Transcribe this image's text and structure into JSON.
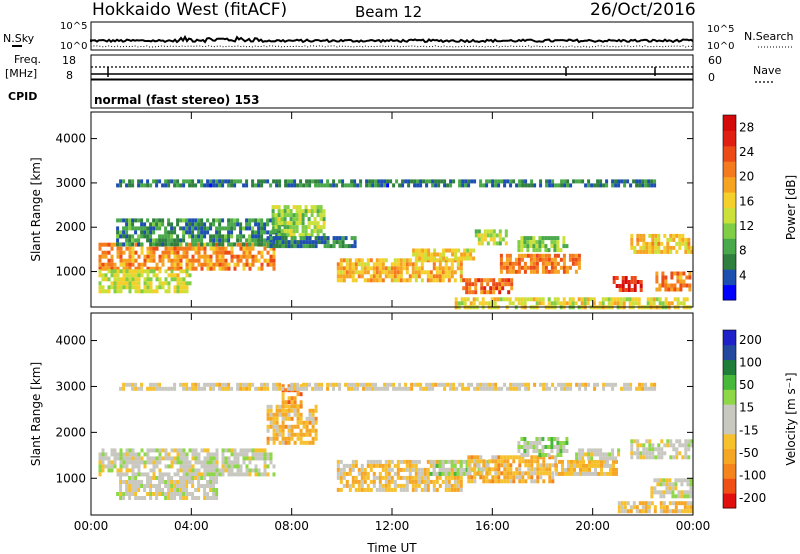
{
  "header": {
    "station": "Hokkaido West (fitACF)",
    "beam": "Beam 12",
    "date": "26/Oct/2016"
  },
  "status_panels": {
    "nsky_label": "N.Sky",
    "nsearch_label": "N.Search",
    "noise_ticks": [
      "10^5",
      "10^0"
    ],
    "freq_label_line1": "Freq.",
    "freq_label_line2": "[MHz]",
    "freq_ticks": [
      "18",
      "8"
    ],
    "nave_label": "Nave",
    "nave_ticks": [
      "60",
      "0"
    ],
    "cpid_label": "CPID",
    "cpid_text": "normal (fast stereo) 153"
  },
  "chart_data": [
    {
      "type": "heatmap",
      "name": "power",
      "ylabel": "Slant Range [km]",
      "ylim": [
        200,
        4600
      ],
      "yticks": [
        1000,
        2000,
        3000,
        4000
      ],
      "xlim": [
        0,
        24
      ],
      "xticks": [
        "00:00",
        "04:00",
        "08:00",
        "12:00",
        "16:00",
        "20:00",
        "00:00"
      ],
      "colorbar": {
        "label": "Power [dB]",
        "ticks": [
          "4",
          "8",
          "12",
          "16",
          "20",
          "24",
          "28"
        ],
        "range": [
          0,
          30
        ],
        "colors": [
          "#0000ff",
          "#1d4fb0",
          "#2f7f3f",
          "#48a84a",
          "#7fce45",
          "#cce03a",
          "#f5d02a",
          "#f6a321",
          "#f47a1d",
          "#ec4b17",
          "#e01e12",
          "#d40a0a"
        ]
      },
      "regions": [
        {
          "t0": 0.3,
          "t1": 7.3,
          "r0": 1050,
          "r1": 1650,
          "v": 20
        },
        {
          "t0": 0.3,
          "t1": 4.0,
          "r0": 550,
          "r1": 1050,
          "v": 14
        },
        {
          "t0": 1.0,
          "t1": 7.6,
          "r0": 1650,
          "r1": 2200,
          "v": 7
        },
        {
          "t0": 7.2,
          "t1": 9.3,
          "r0": 1800,
          "r1": 2500,
          "v": 12
        },
        {
          "t0": 7.0,
          "t1": 10.5,
          "r0": 1600,
          "r1": 1800,
          "v": 6
        },
        {
          "t0": 9.8,
          "t1": 14.8,
          "r0": 780,
          "r1": 1300,
          "v": 18
        },
        {
          "t0": 12.8,
          "t1": 15.3,
          "r0": 1300,
          "r1": 1520,
          "v": 16
        },
        {
          "t0": 14.8,
          "t1": 16.8,
          "r0": 550,
          "r1": 850,
          "v": 22
        },
        {
          "t0": 15.3,
          "t1": 16.5,
          "r0": 1650,
          "r1": 1950,
          "v": 13
        },
        {
          "t0": 16.3,
          "t1": 19.5,
          "r0": 950,
          "r1": 1400,
          "v": 21
        },
        {
          "t0": 17.0,
          "t1": 19.0,
          "r0": 1500,
          "r1": 1800,
          "v": 12
        },
        {
          "t0": 20.8,
          "t1": 21.9,
          "r0": 600,
          "r1": 900,
          "v": 26
        },
        {
          "t0": 21.5,
          "t1": 23.9,
          "r0": 1450,
          "r1": 1850,
          "v": 17
        },
        {
          "t0": 22.5,
          "t1": 23.9,
          "r0": 550,
          "r1": 1000,
          "v": 21
        },
        {
          "t0": 14.5,
          "t1": 23.9,
          "r0": 230,
          "r1": 420,
          "v": 15
        },
        {
          "t0": 1.0,
          "t1": 22.5,
          "r0": 2950,
          "r1": 3080,
          "v": 6
        }
      ]
    },
    {
      "type": "heatmap",
      "name": "velocity",
      "ylabel": "Slant Range [km]",
      "ylim": [
        200,
        4600
      ],
      "yticks": [
        1000,
        2000,
        3000,
        4000
      ],
      "xlim": [
        0,
        24
      ],
      "xticks": [
        "00:00",
        "04:00",
        "08:00",
        "12:00",
        "16:00",
        "20:00",
        "00:00"
      ],
      "xlabel": "Time UT",
      "colorbar": {
        "label": "Velocity [m s⁻¹]",
        "ticks": [
          "200",
          "100",
          "50",
          "15",
          "-15",
          "-50",
          "-100",
          "-200"
        ],
        "range": [
          -250,
          250
        ],
        "colors": [
          "#e20f0f",
          "#f04f16",
          "#f5841d",
          "#f6a625",
          "#f7c02d",
          "#c8c8c0",
          "#c8c8c0",
          "#8ed848",
          "#46b83a",
          "#1f7f3a",
          "#23499e",
          "#2020c8"
        ]
      },
      "regions": [
        {
          "t0": 0.3,
          "t1": 7.3,
          "r0": 1050,
          "r1": 1650,
          "v": 0
        },
        {
          "t0": 1.0,
          "t1": 5.0,
          "r0": 550,
          "r1": 1050,
          "v": 0
        },
        {
          "t0": 7.0,
          "t1": 9.0,
          "r0": 1800,
          "r1": 2600,
          "v": -70
        },
        {
          "t0": 7.6,
          "t1": 8.4,
          "r0": 2600,
          "r1": 3050,
          "v": -120
        },
        {
          "t0": 9.8,
          "t1": 14.8,
          "r0": 750,
          "r1": 1400,
          "v": -60
        },
        {
          "t0": 13.5,
          "t1": 15.8,
          "r0": 1100,
          "r1": 1400,
          "v": 35
        },
        {
          "t0": 15.0,
          "t1": 18.5,
          "r0": 900,
          "r1": 1500,
          "v": -80
        },
        {
          "t0": 17.0,
          "t1": 19.0,
          "r0": 1550,
          "r1": 1900,
          "v": 40
        },
        {
          "t0": 18.5,
          "t1": 21.0,
          "r0": 1100,
          "r1": 1400,
          "v": -60
        },
        {
          "t0": 19.3,
          "t1": 21.0,
          "r0": 1400,
          "r1": 1650,
          "v": 0
        },
        {
          "t0": 21.5,
          "t1": 23.9,
          "r0": 1450,
          "r1": 1850,
          "v": 0
        },
        {
          "t0": 21.0,
          "t1": 23.9,
          "r0": 250,
          "r1": 500,
          "v": -60
        },
        {
          "t0": 22.3,
          "t1": 23.9,
          "r0": 600,
          "r1": 1000,
          "v": 0
        },
        {
          "t0": 1.0,
          "t1": 22.5,
          "r0": 2950,
          "r1": 3080,
          "v": -30
        }
      ]
    }
  ]
}
